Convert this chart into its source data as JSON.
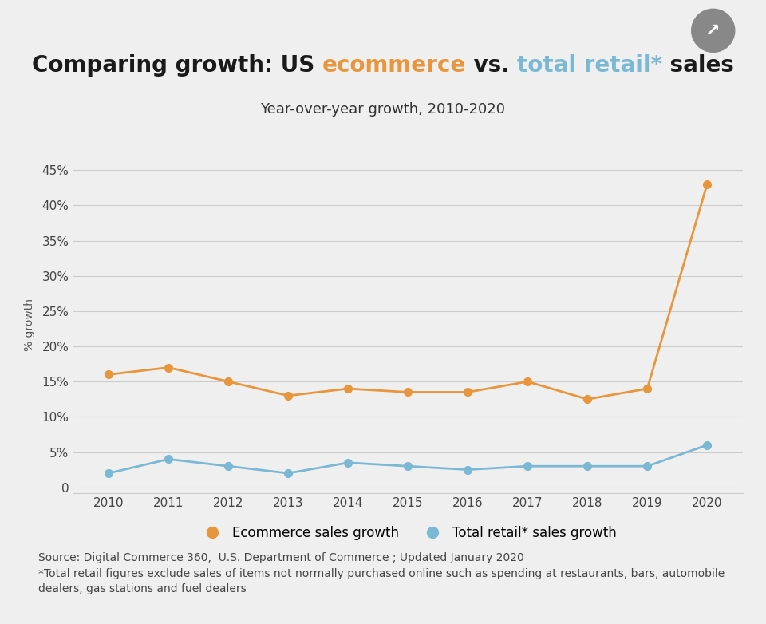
{
  "years": [
    2010,
    2011,
    2012,
    2013,
    2014,
    2015,
    2016,
    2017,
    2018,
    2019,
    2020
  ],
  "ecommerce_growth": [
    0.16,
    0.17,
    0.15,
    0.13,
    0.14,
    0.135,
    0.135,
    0.15,
    0.125,
    0.14,
    0.43
  ],
  "retail_growth": [
    0.02,
    0.04,
    0.03,
    0.02,
    0.035,
    0.03,
    0.025,
    0.03,
    0.03,
    0.03,
    0.06
  ],
  "ecommerce_color": "#E8963C",
  "retail_color": "#7AB8D4",
  "background_color": "#EFEFEF",
  "title_parts": [
    [
      "Comparing growth: US ",
      "#1a1a1a"
    ],
    [
      "ecommerce",
      "#E8963C"
    ],
    [
      " vs. ",
      "#1a1a1a"
    ],
    [
      "total retail*",
      "#7AB8D4"
    ],
    [
      " sales",
      "#1a1a1a"
    ]
  ],
  "subtitle": "Year-over-year growth, 2010-2020",
  "ylabel": "% growth",
  "yticks": [
    0,
    0.05,
    0.1,
    0.15,
    0.2,
    0.25,
    0.3,
    0.35,
    0.4,
    0.45
  ],
  "ytick_labels": [
    "0",
    "5%",
    "10%",
    "15%",
    "20%",
    "25%",
    "30%",
    "35%",
    "40%",
    "45%"
  ],
  "legend_ecommerce": "Ecommerce sales growth",
  "legend_retail": "Total retail* sales growth",
  "source_line1": "Source: Digital Commerce 360,  U.S. Department of Commerce ; Updated January 2020",
  "source_line2": "*Total retail figures exclude sales of items not normally purchased online such as spending at restaurants, bars, automobile",
  "source_line3": "dealers, gas stations and fuel dealers",
  "grid_color": "#CCCCCC",
  "title_fontsize": 20,
  "subtitle_fontsize": 13,
  "ylabel_fontsize": 10,
  "tick_fontsize": 11,
  "legend_fontsize": 12,
  "source_fontsize": 10,
  "xlim": [
    2009.4,
    2020.6
  ],
  "ylim": [
    -0.008,
    0.47
  ]
}
